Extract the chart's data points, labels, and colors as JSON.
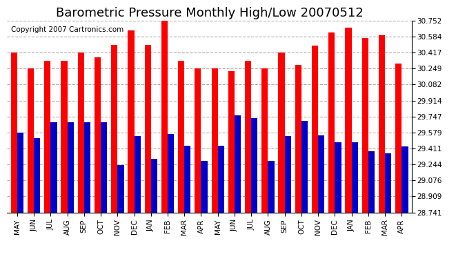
{
  "title": "Barometric Pressure Monthly High/Low 20070512",
  "copyright": "Copyright 2007 Cartronics.com",
  "categories": [
    "MAY",
    "JUN",
    "JUL",
    "AUG",
    "SEP",
    "OCT",
    "NOV",
    "DEC",
    "JAN",
    "FEB",
    "MAR",
    "APR",
    "MAY",
    "JUN",
    "JUL",
    "AUG",
    "SEP",
    "OCT",
    "NOV",
    "DEC",
    "JAN",
    "FEB",
    "MAR",
    "APR"
  ],
  "highs": [
    30.42,
    30.25,
    30.33,
    30.33,
    30.42,
    30.37,
    30.5,
    30.65,
    30.5,
    30.76,
    30.33,
    30.25,
    30.25,
    30.22,
    30.33,
    30.25,
    30.42,
    30.29,
    30.49,
    30.63,
    30.68,
    30.57,
    30.6,
    30.3
  ],
  "lows": [
    29.58,
    29.52,
    29.69,
    29.69,
    29.69,
    29.69,
    29.24,
    29.54,
    29.3,
    29.56,
    29.44,
    29.28,
    29.44,
    29.76,
    29.73,
    29.28,
    29.54,
    29.7,
    29.55,
    29.48,
    29.48,
    29.38,
    29.36,
    29.43
  ],
  "high_color": "#ff0000",
  "low_color": "#0000cc",
  "background_color": "#ffffff",
  "grid_color": "#999999",
  "ymin": 28.741,
  "ymax": 30.752,
  "yticks": [
    28.741,
    28.909,
    29.076,
    29.244,
    29.411,
    29.579,
    29.747,
    29.914,
    30.082,
    30.249,
    30.417,
    30.584,
    30.752
  ],
  "title_fontsize": 13,
  "copyright_fontsize": 7.5,
  "tick_fontsize": 7.5,
  "bar_width": 0.38
}
